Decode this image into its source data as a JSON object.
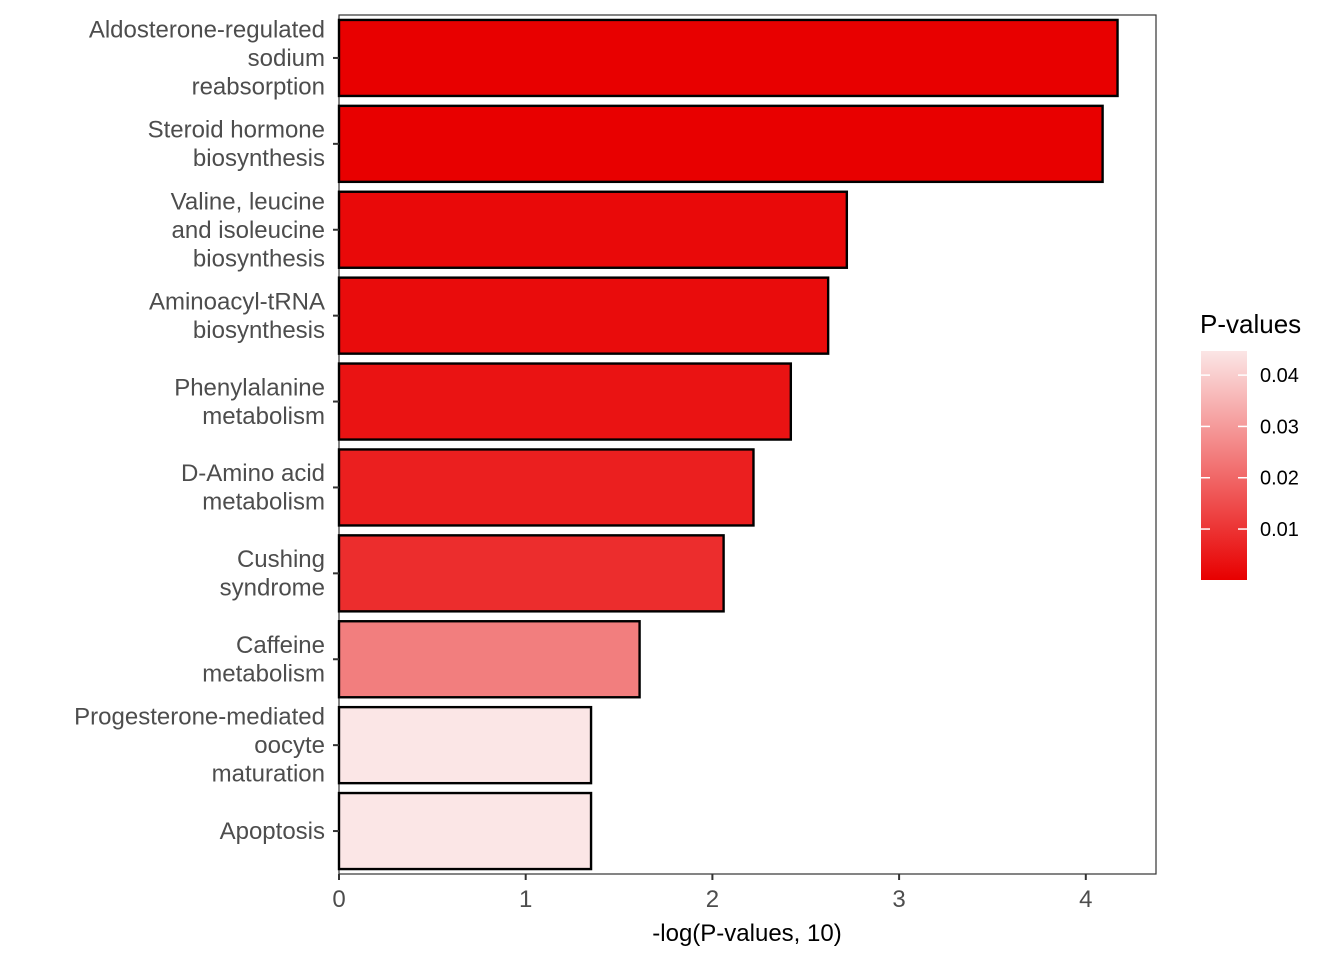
{
  "chart_data": {
    "type": "bar",
    "orientation": "horizontal",
    "categories": [
      [
        "Aldosterone-regulated",
        "sodium",
        "reabsorption"
      ],
      [
        "Steroid hormone",
        "biosynthesis"
      ],
      [
        "Valine, leucine",
        "and isoleucine",
        "biosynthesis"
      ],
      [
        "Aminoacyl-tRNA",
        "biosynthesis"
      ],
      [
        "Phenylalanine",
        "metabolism"
      ],
      [
        "D-Amino acid",
        "metabolism"
      ],
      [
        "Cushing",
        "syndrome"
      ],
      [
        "Caffeine",
        "metabolism"
      ],
      [
        "Progesterone-mediated",
        "oocyte",
        "maturation"
      ],
      [
        "Apoptosis"
      ]
    ],
    "values": [
      4.17,
      4.09,
      2.72,
      2.62,
      2.42,
      2.22,
      2.06,
      1.61,
      1.35,
      1.35
    ],
    "xlabel": "-log(P-values, 10)",
    "ylabel": "",
    "xlim": [
      0,
      4.3
    ],
    "xticks": [
      "0",
      "1",
      "2",
      "3",
      "4"
    ],
    "grid": false,
    "colors": {
      "low": "#e80000",
      "high": "#fbe6e6",
      "outline": "#000000"
    },
    "legend": {
      "title": "P-values",
      "position": "right",
      "range": [
        6.76e-05,
        0.0447
      ],
      "ticks": [
        "0.01",
        "0.02",
        "0.03",
        "0.04"
      ],
      "tick_values": [
        0.01,
        0.02,
        0.03,
        0.04
      ]
    }
  }
}
